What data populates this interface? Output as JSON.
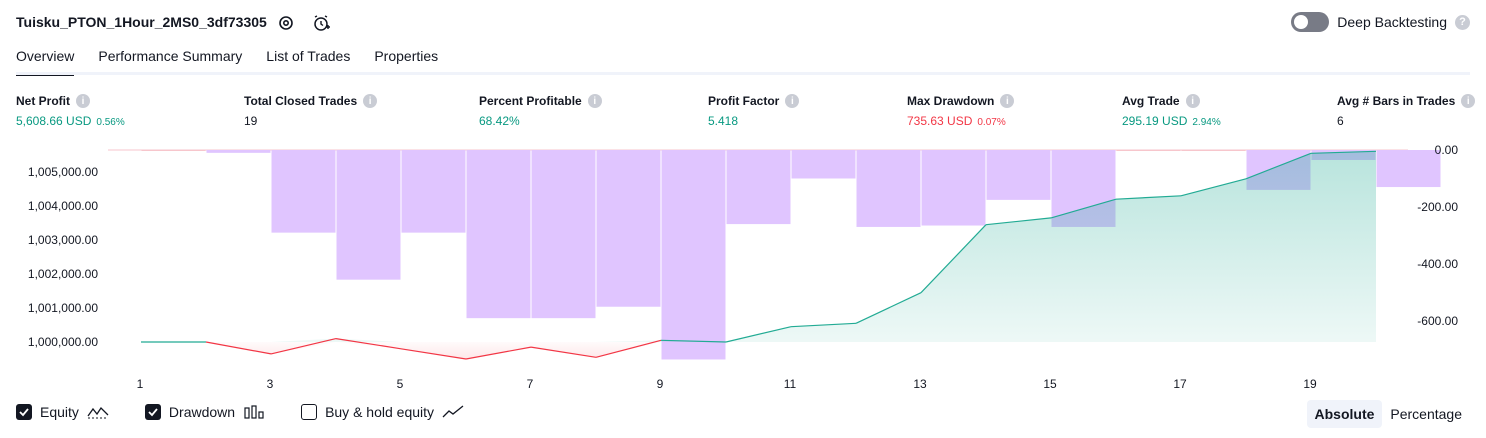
{
  "header": {
    "title": "Tuisku_PTON_1Hour_2MS0_3df73305",
    "deep_backtesting_label": "Deep Backtesting",
    "deep_backtesting_on": false,
    "help_glyph": "?"
  },
  "tabs": [
    {
      "label": "Overview",
      "active": true
    },
    {
      "label": "Performance Summary",
      "active": false
    },
    {
      "label": "List of Trades",
      "active": false
    },
    {
      "label": "Properties",
      "active": false
    }
  ],
  "metrics": {
    "net_profit": {
      "label": "Net Profit",
      "value": "5,608.66 USD",
      "pct": "0.56%"
    },
    "total_closed_trades": {
      "label": "Total Closed Trades",
      "value": "19"
    },
    "percent_profitable": {
      "label": "Percent Profitable",
      "value": "68.42%"
    },
    "profit_factor": {
      "label": "Profit Factor",
      "value": "5.418"
    },
    "max_drawdown": {
      "label": "Max Drawdown",
      "value": "735.63 USD",
      "pct": "0.07%"
    },
    "avg_trade": {
      "label": "Avg Trade",
      "value": "295.19 USD",
      "pct": "2.94%"
    },
    "avg_bars": {
      "label": "Avg # Bars in Trades",
      "value": "6"
    },
    "info_glyph": "i"
  },
  "colors": {
    "positive": "#089981",
    "negative": "#f23645",
    "drawdown_bar": "#e0c5ff",
    "equity_line": "#22ab94",
    "equity_loss_line": "#f23645",
    "overlap_bar": "#b0b5e4"
  },
  "chart_data": {
    "type": "line",
    "x": [
      1,
      2,
      3,
      4,
      5,
      6,
      7,
      8,
      9,
      10,
      11,
      12,
      13,
      14,
      15,
      16,
      17,
      18,
      19,
      20
    ],
    "x_ticks": [
      "1",
      "3",
      "5",
      "7",
      "9",
      "11",
      "13",
      "15",
      "17",
      "19"
    ],
    "series": [
      {
        "axis": "left",
        "values": [
          1000000,
          1000000,
          999650,
          1000100,
          999800,
          999500,
          999850,
          999550,
          1000050,
          1000000,
          1000450,
          1000550,
          1001450,
          1003450,
          1003650,
          1004200,
          1004300,
          1004800,
          1005550,
          1005609
        ]
      },
      {
        "axis": "right",
        "kind": "bar",
        "values": [
          0,
          -10,
          -290,
          -455,
          -290,
          -590,
          -590,
          -550,
          -735,
          -260,
          -100,
          -270,
          -265,
          -175,
          -270,
          0,
          0,
          -140,
          -35,
          -130
        ]
      }
    ],
    "y_left_ticks": [
      "1,000,000.00",
      "1,001,000.00",
      "1,002,000.00",
      "1,003,000.00",
      "1,004,000.00",
      "1,005,000.00"
    ],
    "y_left_ticks_values": [
      1000000,
      1001000,
      1002000,
      1003000,
      1004000,
      1005000
    ],
    "y_left_range": [
      1000000,
      1005600
    ],
    "y_right_ticks": [
      "0.00",
      "-200.00",
      "-400.00",
      "-600.00"
    ],
    "y_right_ticks_values": [
      0,
      -200,
      -400,
      -600
    ],
    "y_right_range": [
      -735,
      0
    ]
  },
  "legend": {
    "equity_label": "Equity",
    "drawdown_label": "Drawdown",
    "buy_hold_label": "Buy & hold equity",
    "equity_checked": true,
    "drawdown_checked": true,
    "buy_hold_checked": false
  },
  "mode": {
    "absolute_label": "Absolute",
    "percentage_label": "Percentage",
    "selected": "Absolute"
  }
}
